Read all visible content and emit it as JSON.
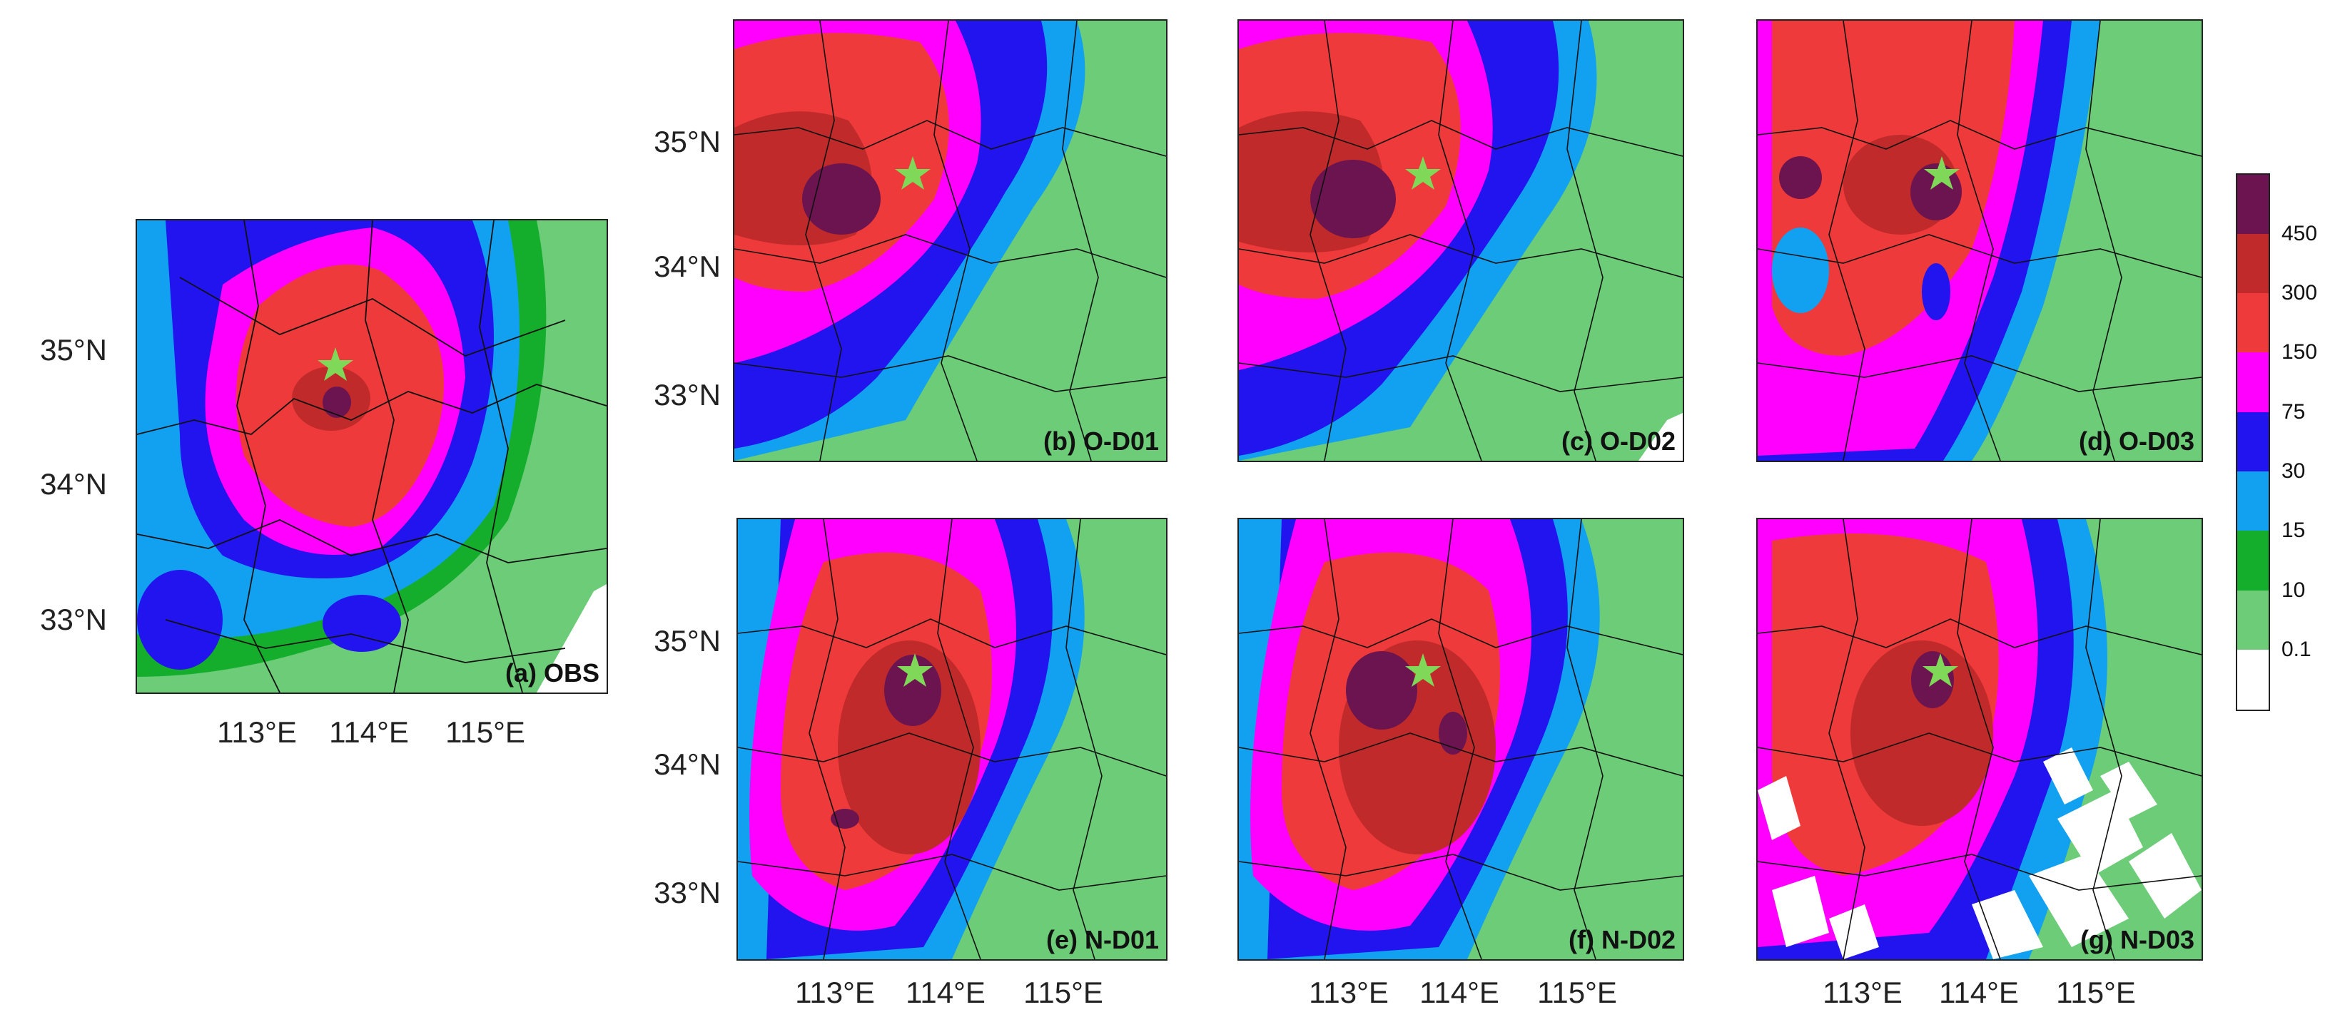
{
  "panels": [
    {
      "id": "a",
      "label": "(a) OBS"
    },
    {
      "id": "b",
      "label": "(b) O-D01"
    },
    {
      "id": "c",
      "label": "(c) O-D02"
    },
    {
      "id": "d",
      "label": "(d) O-D03"
    },
    {
      "id": "e",
      "label": "(e) N-D01"
    },
    {
      "id": "f",
      "label": "(f) N-D02"
    },
    {
      "id": "g",
      "label": "(g) N-D03"
    }
  ],
  "lat_ticks": [
    "35°N",
    "34°N",
    "33°N"
  ],
  "lon_ticks": [
    "113°E",
    "114°E",
    "115°E"
  ],
  "colorbar": {
    "labels": [
      "450",
      "300",
      "150",
      "75",
      "30",
      "15",
      "10",
      "0.1"
    ],
    "colors": [
      "#6b1450",
      "#c02a2a",
      "#ee3a3a",
      "#ff00ff",
      "#2214ee",
      "#12a0f0",
      "#14ae2c",
      "#6ccc78",
      "#ffffff"
    ]
  },
  "marker": {
    "symbol": "star",
    "color": "#7fd857"
  }
}
